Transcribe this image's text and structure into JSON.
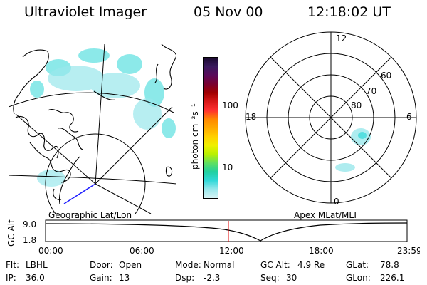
{
  "header": {
    "instrument": "Ultraviolet Imager",
    "date": "05 Nov 00",
    "time": "12:18:02 UT"
  },
  "colorbar": {
    "label": "photon cm⁻²s⁻¹",
    "ticks": [
      "100",
      "10"
    ],
    "colors": [
      "#1a0a2e",
      "#3a1a5e",
      "#5a0a5a",
      "#7a0030",
      "#a00000",
      "#d81818",
      "#ff3030",
      "#ff8800",
      "#ffaa00",
      "#ffd000",
      "#f0f000",
      "#b8f000",
      "#60e060",
      "#20d0a0",
      "#30d8d8",
      "#9ae8ec",
      "#d8f4f6"
    ]
  },
  "left_panel": {
    "caption": "Geographic Lat/Lon"
  },
  "right_panel": {
    "caption": "Apex MLat/MLT",
    "mlt_labels": {
      "top": "12",
      "bottom": "0",
      "left": "18",
      "right": "6"
    },
    "lat_labels": [
      "60",
      "70",
      "80"
    ]
  },
  "altitude_plot": {
    "axis_label": "GC Alt",
    "y_ticks": [
      "9.0",
      "1.8"
    ],
    "x_ticks": [
      "00:00",
      "06:00",
      "12:00",
      "18:00",
      "23:59"
    ]
  },
  "info": {
    "flt_label": "Flt:",
    "flt_value": "LBHL",
    "door_label": "Door:",
    "door_value": "Open",
    "mode_label": "Mode:",
    "mode_value": "Normal",
    "gcalt_label": "GC Alt:",
    "gcalt_value": "4.9 Re",
    "glat_label": "GLat:",
    "glat_value": "78.8",
    "ip_label": "IP:",
    "ip_value": "36.0",
    "gain_label": "Gain:",
    "gain_value": "13",
    "dsp_label": "Dsp:",
    "dsp_value": "-2.3",
    "seq_label": "Seq:",
    "seq_value": "30",
    "glon_label": "GLon:",
    "glon_value": "226.1"
  }
}
